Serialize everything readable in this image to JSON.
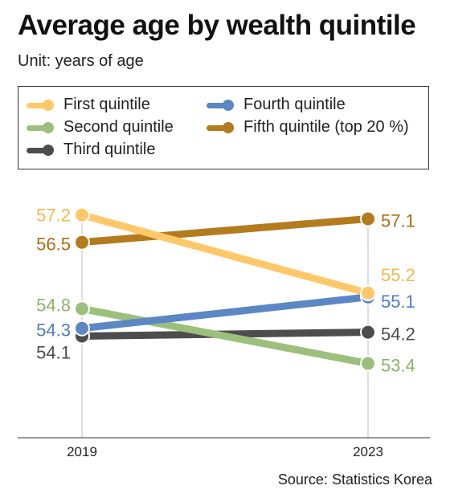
{
  "title": "Average age by wealth quintile",
  "subtitle": "Unit: years of age",
  "source": "Source: Statistics Korea",
  "legend": [
    {
      "label": "First quintile",
      "color": "#FEC86A"
    },
    {
      "label": "Fourth quintile",
      "color": "#5B87C5"
    },
    {
      "label": "Second quintile",
      "color": "#9DBF7C"
    },
    {
      "label": "Fifth quintile (top 20 %)",
      "color": "#B47A1E"
    },
    {
      "label": "Third quintile",
      "color": "#4D4D4D"
    }
  ],
  "chart_data": {
    "type": "line",
    "title": "Average age by wealth quintile",
    "subtitle": "Unit: years of age",
    "categories": [
      "2019",
      "2023"
    ],
    "ylim": [
      51.5,
      57.5
    ],
    "grid": false,
    "legend_position": "top",
    "series": [
      {
        "name": "First quintile",
        "values": [
          57.2,
          55.2
        ],
        "labels": [
          "57.2",
          "55.2"
        ],
        "color": "#FEC86A",
        "text_color": "#F5B84A"
      },
      {
        "name": "Second quintile",
        "values": [
          54.8,
          53.4
        ],
        "labels": [
          "54.8",
          "53.4"
        ],
        "color": "#9DBF7C",
        "text_color": "#8DB26A"
      },
      {
        "name": "Third quintile",
        "values": [
          54.1,
          54.2
        ],
        "labels": [
          "54.1",
          "54.2"
        ],
        "color": "#4D4D4D",
        "text_color": "#4D4D4D"
      },
      {
        "name": "Fourth quintile",
        "values": [
          54.3,
          55.1
        ],
        "labels": [
          "54.3",
          "55.1"
        ],
        "color": "#5B87C5",
        "text_color": "#4F7BBE"
      },
      {
        "name": "Fifth quintile (top 20 %)",
        "values": [
          56.5,
          57.1
        ],
        "labels": [
          "56.5",
          "57.1"
        ],
        "color": "#B47A1E",
        "text_color": "#A86E12"
      }
    ]
  }
}
